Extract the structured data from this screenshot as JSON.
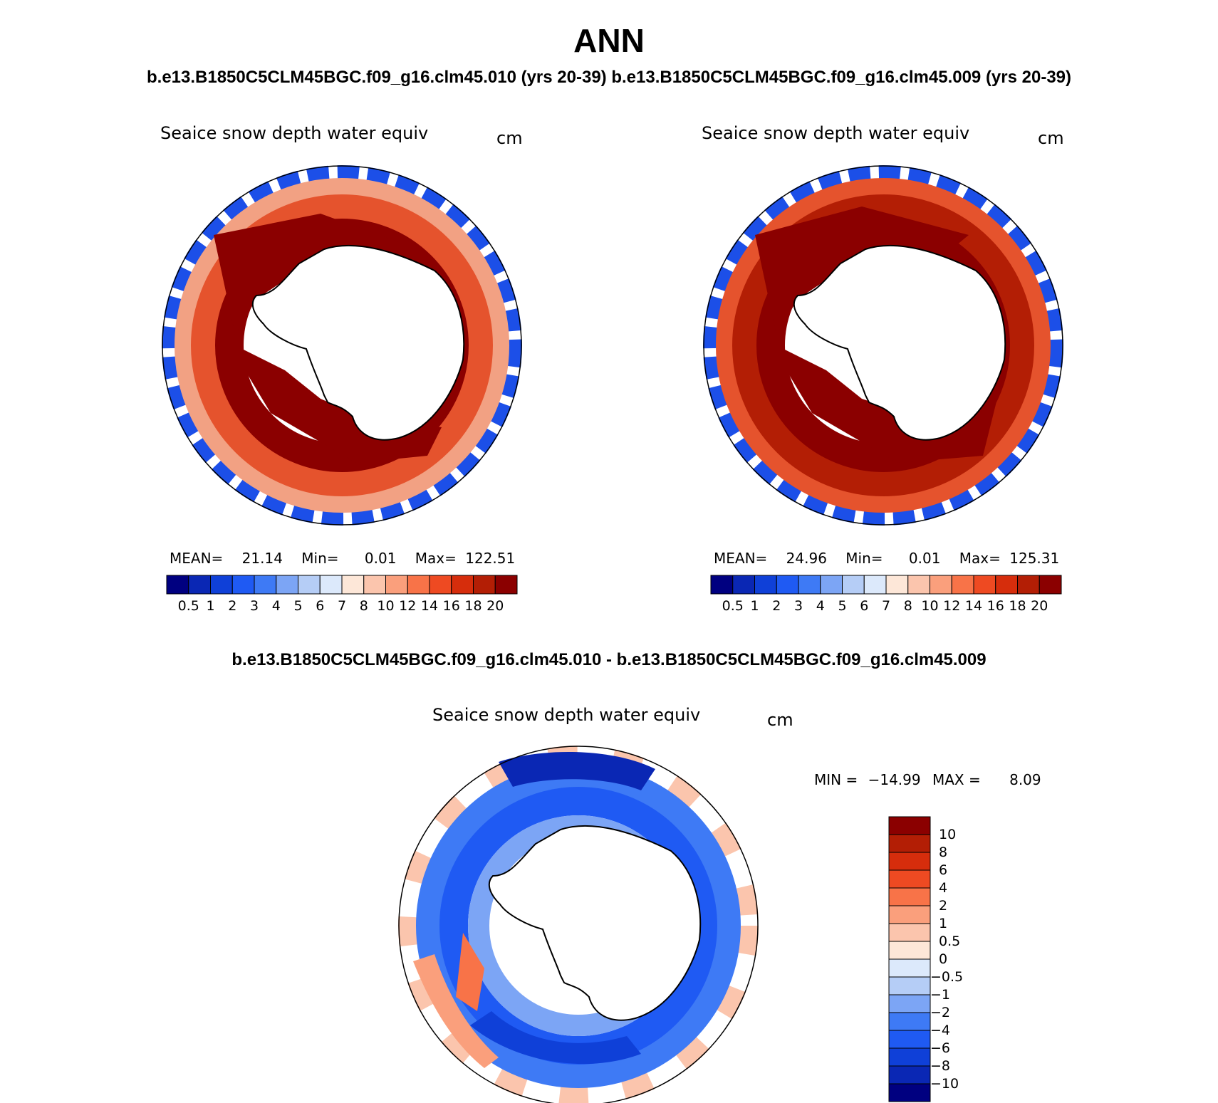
{
  "title": "ANN",
  "subtitle": "b.e13.B1850C5CLM45BGC.f09_g16.clm45.010 (yrs 20-39)  b.e13.B1850C5CLM45BGC.f09_g16.clm45.009 (yrs 20-39)",
  "panels": [
    {
      "variable": "Seaice snow depth water equiv",
      "units": "cm",
      "stats": {
        "mean_label": "MEAN=",
        "mean": "21.14",
        "min_label": "Min=",
        "min": "0.01",
        "max_label": "Max=",
        "max": "122.51"
      }
    },
    {
      "variable": "Seaice snow depth water equiv",
      "units": "cm",
      "stats": {
        "mean_label": "MEAN=",
        "mean": "24.96",
        "min_label": "Min=",
        "min": "0.01",
        "max_label": "Max=",
        "max": "125.31"
      }
    }
  ],
  "colorbar": {
    "labels": [
      "0.5",
      "1",
      "2",
      "3",
      "4",
      "5",
      "6",
      "7",
      "8",
      "10",
      "12",
      "14",
      "16",
      "18",
      "20"
    ],
    "colors": [
      "#000080",
      "#0a27b4",
      "#0f40d8",
      "#1f5af3",
      "#3e7af5",
      "#7ca5f5",
      "#b5cdf6",
      "#dce9fb",
      "#fde7d8",
      "#fbc5ad",
      "#fa9f7c",
      "#f87348",
      "#ee4a22",
      "#d62d0c",
      "#b31e05",
      "#8b0000"
    ]
  },
  "diff": {
    "title": "b.e13.B1850C5CLM45BGC.f09_g16.clm45.010 - b.e13.B1850C5CLM45BGC.f09_g16.clm45.009",
    "variable": "Seaice snow depth water equiv",
    "units": "cm",
    "min_label": "MIN =",
    "min": "−14.99",
    "max_label": "MAX =",
    "max": "8.09",
    "colorbar_labels": [
      "10",
      "8",
      "6",
      "4",
      "2",
      "1",
      "0.5",
      "0",
      "−0.5",
      "−1",
      "−2",
      "−4",
      "−6",
      "−8",
      "−10"
    ],
    "colorbar_colors": [
      "#8b0000",
      "#b31e05",
      "#d62d0c",
      "#ee4a22",
      "#f87348",
      "#fa9f7c",
      "#fbc5ad",
      "#fde7d8",
      "#dce9fb",
      "#b5cdf6",
      "#7ca5f5",
      "#3e7af5",
      "#1f5af3",
      "#0f40d8",
      "#0a27b4",
      "#000080"
    ]
  }
}
